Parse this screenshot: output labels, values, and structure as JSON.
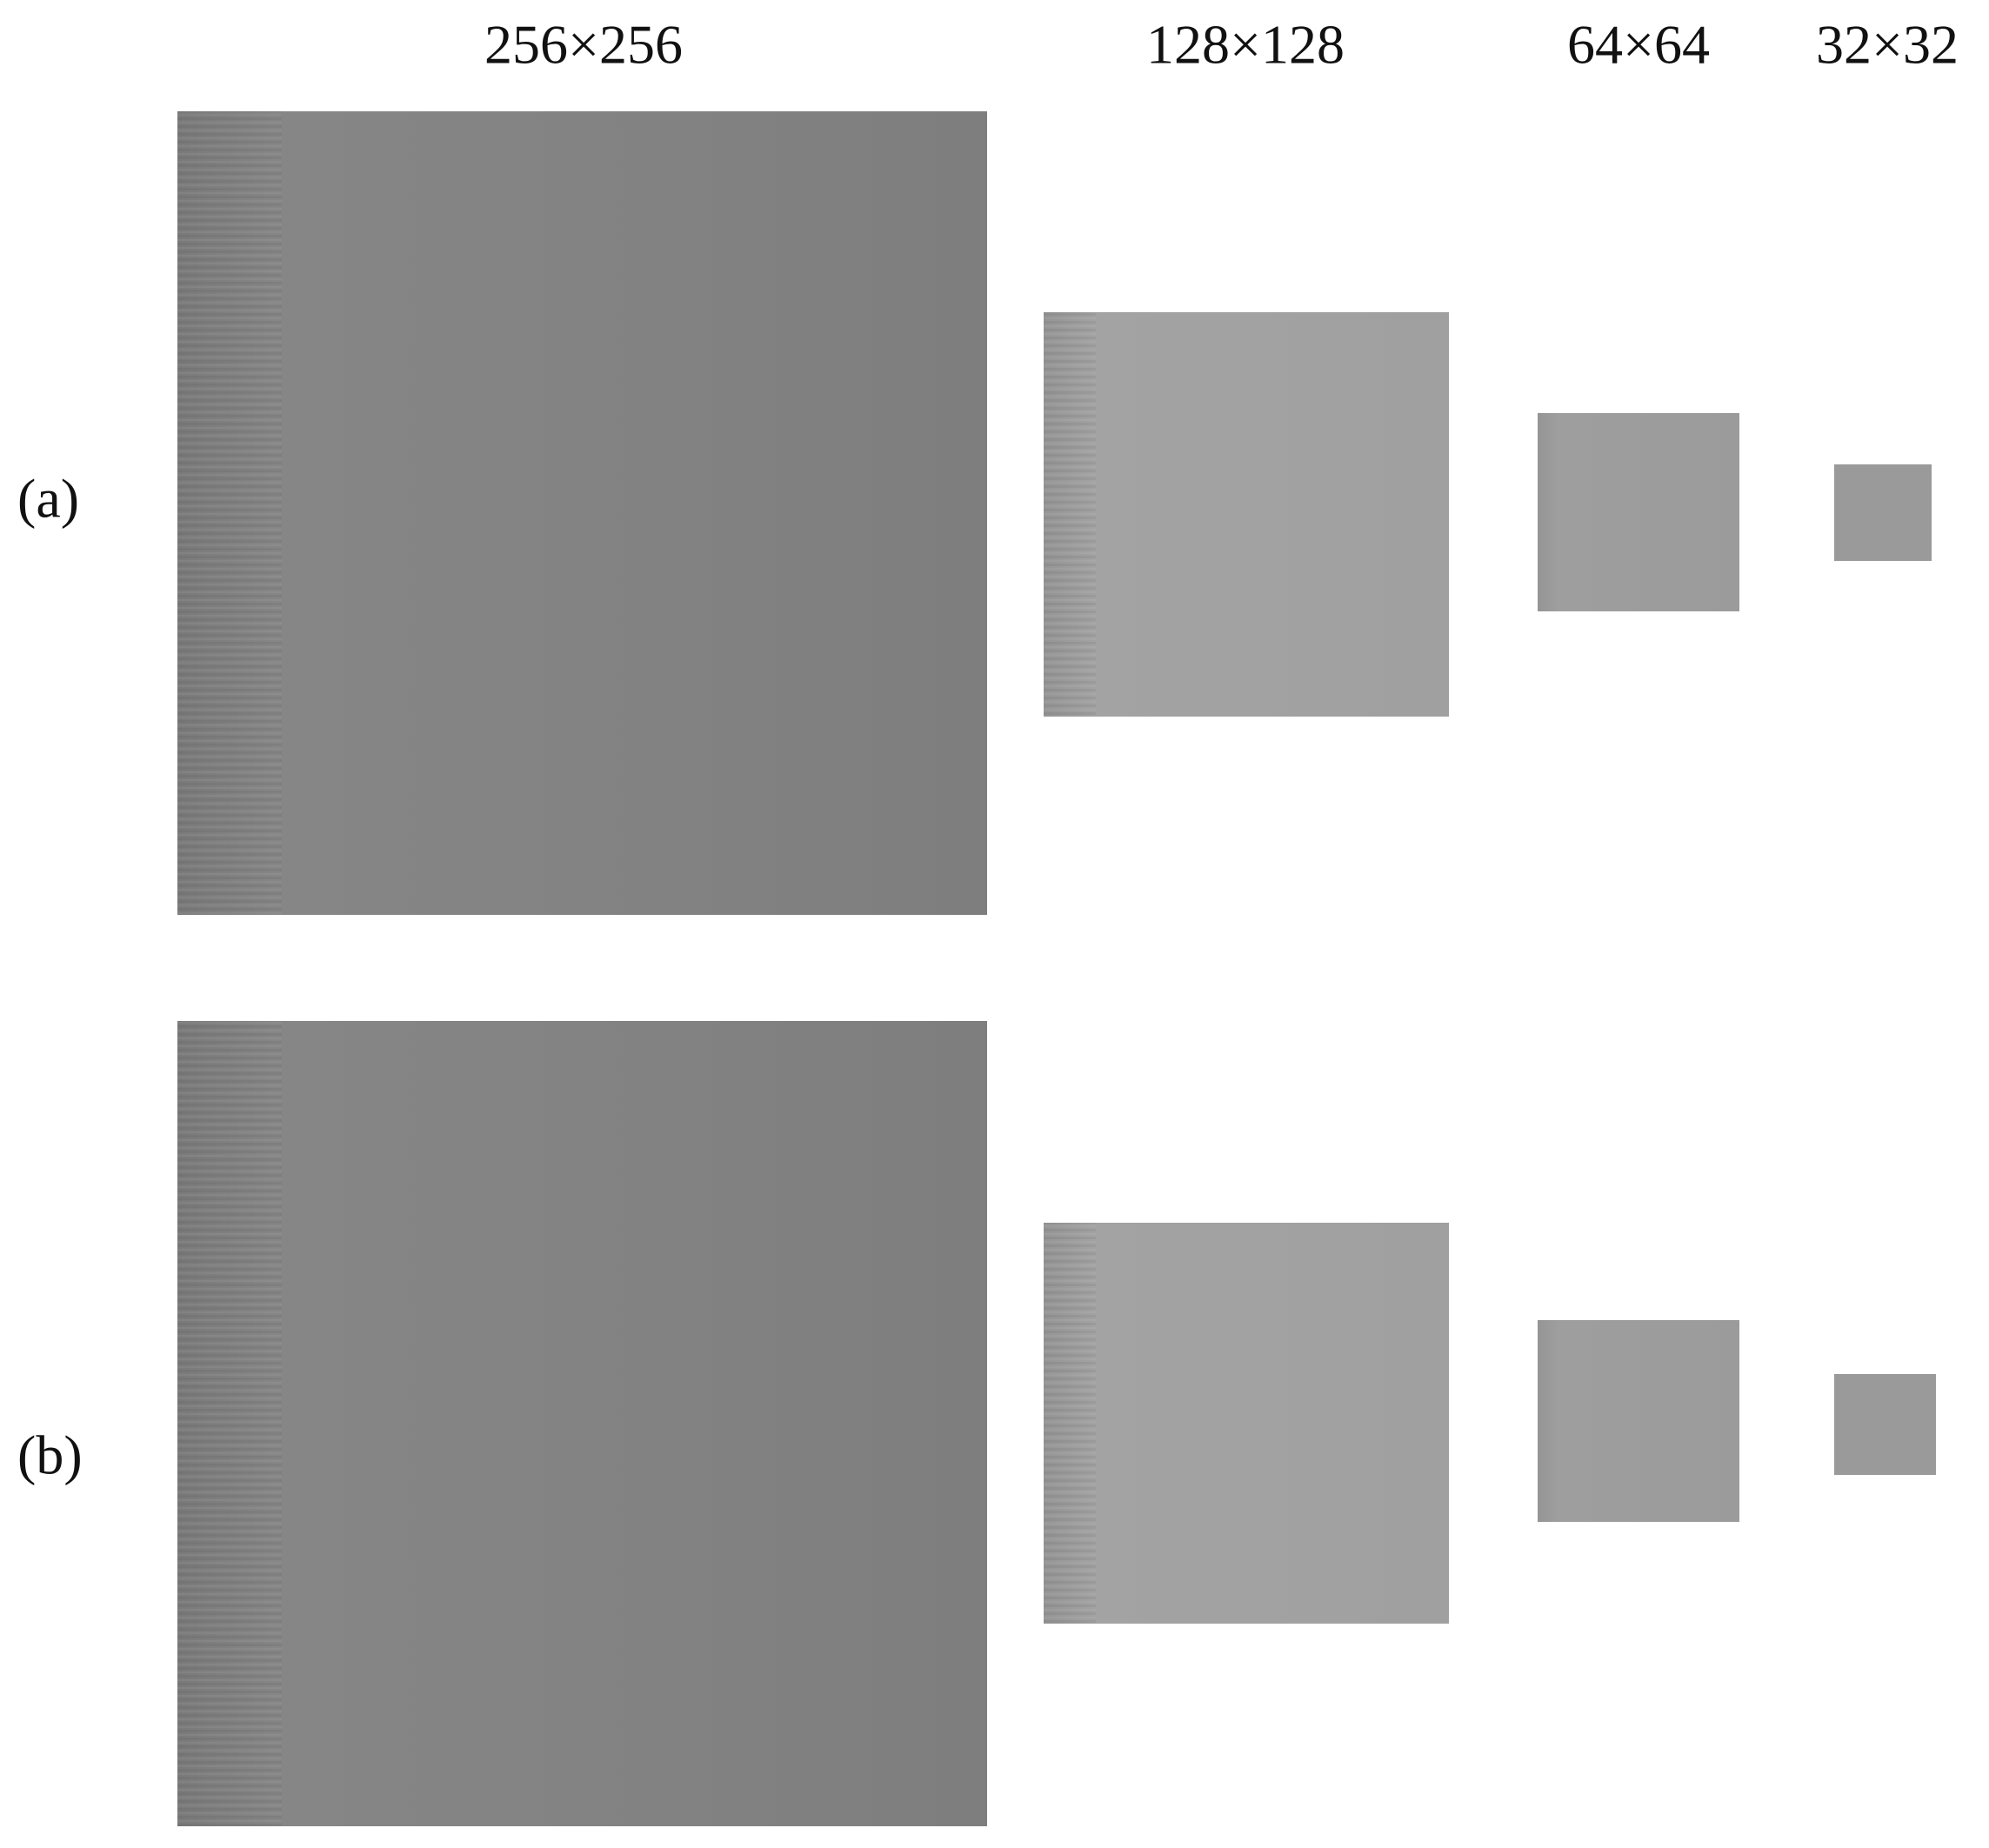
{
  "columns": [
    "256×256",
    "128×128",
    "64×64",
    "32×32"
  ],
  "rows": [
    "(a)",
    "(b)"
  ]
}
